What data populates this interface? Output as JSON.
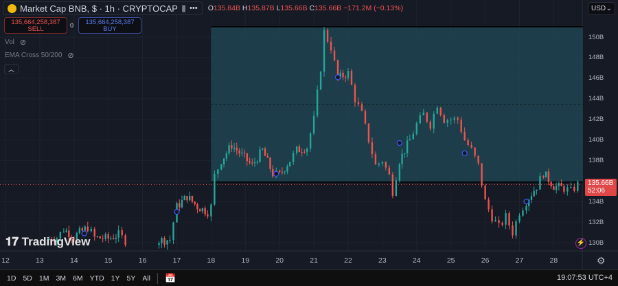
{
  "header": {
    "title": "Market Cap BNB, $ · 1h · CRYPTOCAP",
    "more": "•••",
    "ohlc": {
      "o": "135.84B",
      "h": "135.87B",
      "l": "135.66B",
      "c": "135.66B",
      "change": "−171.2M (−0.13%)"
    }
  },
  "trade": {
    "sell_price": "135,664,258,387",
    "sell_label": "SELL",
    "spread": "0",
    "buy_price": "135,664,258,387",
    "buy_label": "BUY"
  },
  "indicators": [
    {
      "label": "Vol"
    },
    {
      "label": "EMA Cross 50/200"
    }
  ],
  "currency": "USD",
  "price_axis": [
    "150B",
    "148B",
    "146B",
    "144B",
    "142B",
    "140B",
    "138B",
    "134B",
    "132B",
    "130B"
  ],
  "current": {
    "price": "135.66B",
    "countdown": "52:06"
  },
  "time_axis": [
    "12",
    "13",
    "14",
    "15",
    "16",
    "17",
    "18",
    "19",
    "20",
    "21",
    "22",
    "23",
    "24",
    "25",
    "26",
    "27",
    "28"
  ],
  "brand": "TradingView",
  "ranges": [
    "1D",
    "5D",
    "1M",
    "3M",
    "6M",
    "YTD",
    "1Y",
    "5Y",
    "All"
  ],
  "clock": "19:07:53 UTC+4",
  "colors": {
    "up": "#26a69a",
    "down": "#ef5350",
    "box": "#1f4a55"
  },
  "chart_data": {
    "type": "candlestick",
    "unit": "B USD",
    "path": [
      [
        13.2,
        130.3
      ],
      [
        13.5,
        130.5
      ],
      [
        13.7,
        131.3
      ],
      [
        14,
        130.6
      ],
      [
        14.4,
        131.5
      ],
      [
        14.6,
        130.5
      ],
      [
        15,
        130.4
      ],
      [
        15.3,
        130.8
      ],
      [
        15.5,
        130.2
      ],
      [
        16.4,
        130.2
      ],
      [
        16.8,
        130.3
      ],
      [
        16.9,
        132
      ],
      [
        17,
        133.5
      ],
      [
        17.3,
        134.5
      ],
      [
        17.6,
        133.5
      ],
      [
        17.9,
        133
      ],
      [
        18,
        133.5
      ],
      [
        18.1,
        136.5
      ],
      [
        18.3,
        138
      ],
      [
        18.6,
        139.5
      ],
      [
        18.9,
        138.5
      ],
      [
        19.2,
        137.5
      ],
      [
        19.5,
        139
      ],
      [
        19.8,
        136.7
      ],
      [
        20,
        136.6
      ],
      [
        20.3,
        138
      ],
      [
        20.5,
        139
      ],
      [
        20.8,
        139.3
      ],
      [
        21,
        142
      ],
      [
        21.2,
        147
      ],
      [
        21.3,
        150.5
      ],
      [
        21.5,
        149
      ],
      [
        21.7,
        146
      ],
      [
        22,
        146.5
      ],
      [
        22.2,
        144
      ],
      [
        22.4,
        142.5
      ],
      [
        22.6,
        140
      ],
      [
        22.8,
        137.5
      ],
      [
        23,
        138
      ],
      [
        23.2,
        136.5
      ],
      [
        23.3,
        135
      ],
      [
        23.5,
        138
      ],
      [
        23.8,
        140
      ],
      [
        24,
        141.5
      ],
      [
        24.2,
        142.5
      ],
      [
        24.4,
        141.5
      ],
      [
        24.6,
        143.5
      ],
      [
        24.8,
        142
      ],
      [
        25,
        142
      ],
      [
        25.2,
        142
      ],
      [
        25.4,
        140
      ],
      [
        25.6,
        139
      ],
      [
        25.8,
        137.5
      ],
      [
        26,
        134
      ],
      [
        26.2,
        132.5
      ],
      [
        26.4,
        131.5
      ],
      [
        26.6,
        132.5
      ],
      [
        26.8,
        131
      ],
      [
        27,
        133
      ],
      [
        27.2,
        134
      ],
      [
        27.5,
        135.5
      ],
      [
        27.7,
        136.8
      ],
      [
        28,
        135.5
      ],
      [
        28.3,
        135.3
      ],
      [
        28.5,
        135
      ],
      [
        28.7,
        135.66
      ]
    ],
    "rectangle": {
      "from_day": 18,
      "to_day": 28.85,
      "top": 151,
      "bottom": 135.9
    }
  }
}
